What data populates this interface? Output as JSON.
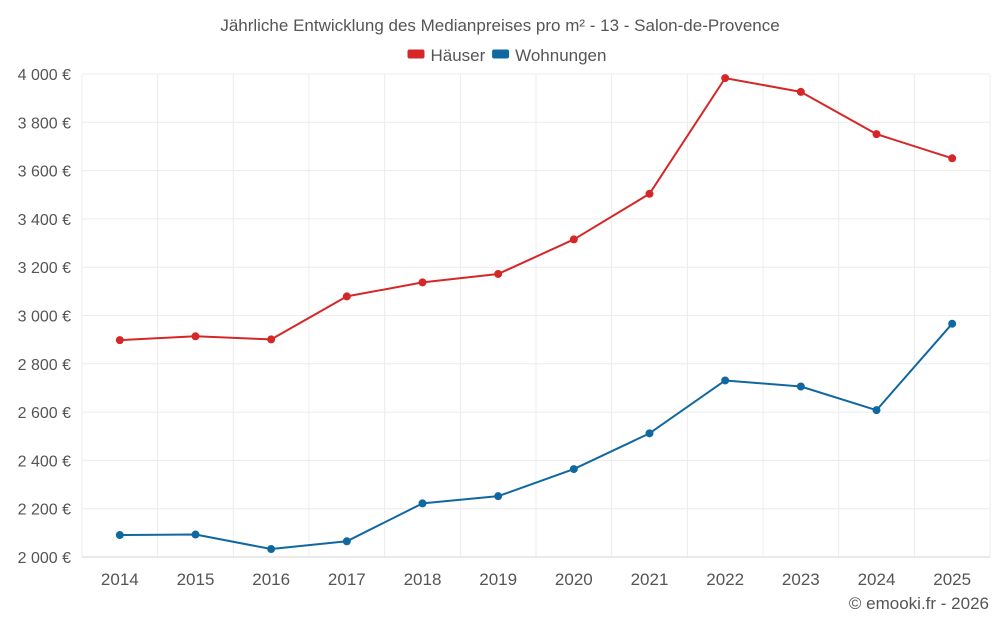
{
  "title": "Jährliche Entwicklung des Medianpreises pro m² - 13 - Salon-de-Provence",
  "footer": "© emooki.fr - 2026",
  "colors": {
    "houses": "#d62728",
    "apartments": "#1068a0",
    "grid": "#ececec",
    "axis": "#d6d6d6",
    "text": "#555555"
  },
  "chart_data": {
    "type": "line",
    "title": "Jährliche Entwicklung des Medianpreises pro m² - 13 - Salon-de-Provence",
    "x": [
      2014,
      2015,
      2016,
      2017,
      2018,
      2019,
      2020,
      2021,
      2022,
      2023,
      2024,
      2025
    ],
    "x_tick_labels": [
      "2014",
      "2015",
      "2016",
      "2017",
      "2018",
      "2019",
      "2020",
      "2021",
      "2022",
      "2023",
      "2024",
      "2025"
    ],
    "ylim": [
      2000,
      4000
    ],
    "y_ticks": [
      2000,
      2200,
      2400,
      2600,
      2800,
      3000,
      3200,
      3400,
      3600,
      3800,
      4000
    ],
    "y_tick_labels": [
      "2 000 €",
      "2 200 €",
      "2 400 €",
      "2 600 €",
      "2 800 €",
      "3 000 €",
      "3 200 €",
      "3 400 €",
      "3 600 €",
      "3 800 €",
      "4 000 €"
    ],
    "grid": true,
    "legend_position": "top-center",
    "series": [
      {
        "name": "Häuser",
        "key": "houses",
        "color": "#d62728",
        "values": [
          2898,
          2914,
          2901,
          3079,
          3137,
          3172,
          3315,
          3504,
          3983,
          3926,
          3751,
          3651
        ]
      },
      {
        "name": "Wohnungen",
        "key": "apartments",
        "color": "#1068a0",
        "values": [
          2091,
          2093,
          2033,
          2065,
          2222,
          2252,
          2364,
          2512,
          2731,
          2706,
          2608,
          2966
        ]
      }
    ]
  }
}
